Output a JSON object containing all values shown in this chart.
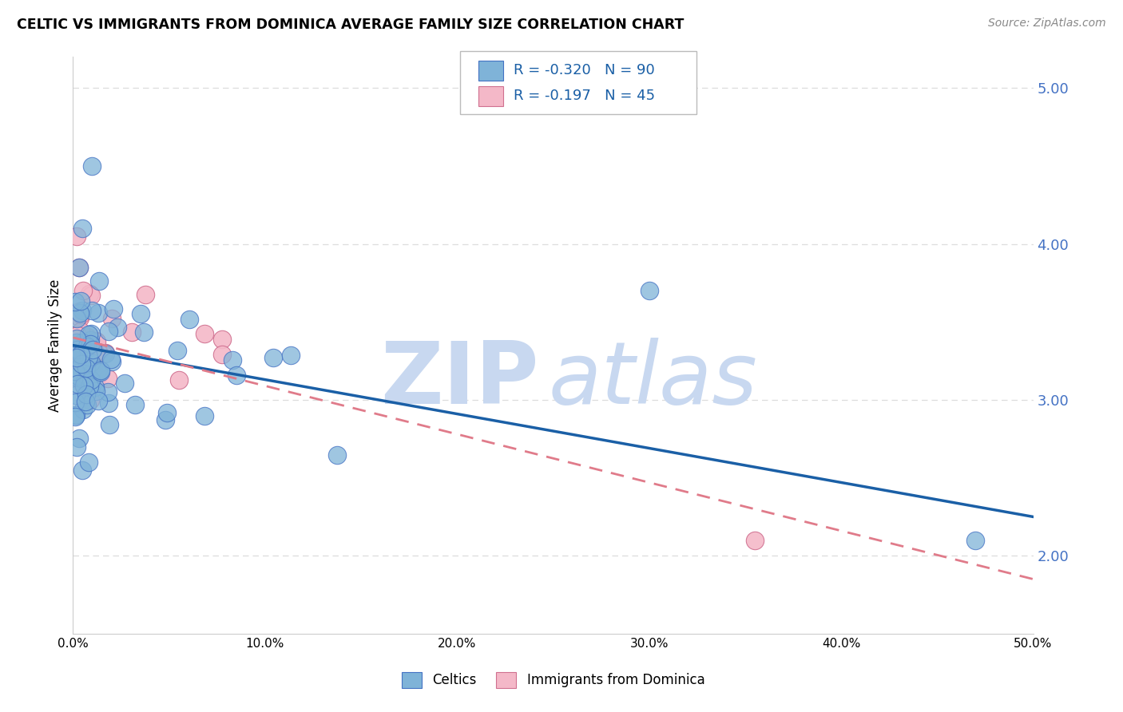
{
  "title": "CELTIC VS IMMIGRANTS FROM DOMINICA AVERAGE FAMILY SIZE CORRELATION CHART",
  "source": "Source: ZipAtlas.com",
  "ylabel": "Average Family Size",
  "xmin": 0.0,
  "xmax": 0.5,
  "ymin": 1.5,
  "ymax": 5.2,
  "yticks": [
    2.0,
    3.0,
    4.0,
    5.0
  ],
  "legend_R1": "-0.320",
  "legend_N1": "90",
  "legend_R2": "-0.197",
  "legend_N2": "45",
  "celtics_color": "#7fb3d8",
  "celtics_edge": "#4472c4",
  "dominica_color": "#f4b8c8",
  "dominica_edge": "#d07090",
  "trendline_celtics_color": "#1a5fa6",
  "trendline_dominica_color": "#e07b8a",
  "watermark_zip": "ZIP",
  "watermark_atlas": "atlas",
  "watermark_color": "#c8d8f0",
  "grid_color": "#dddddd",
  "right_tick_color": "#4472c4",
  "xtick_labels": [
    "0.0%",
    "10.0%",
    "20.0%",
    "30.0%",
    "40.0%",
    "50.0%"
  ],
  "xtick_vals": [
    0.0,
    0.1,
    0.2,
    0.3,
    0.4,
    0.5
  ],
  "legend_box_color": "#f0f0f0",
  "legend_text_color": "#1a5fa6"
}
